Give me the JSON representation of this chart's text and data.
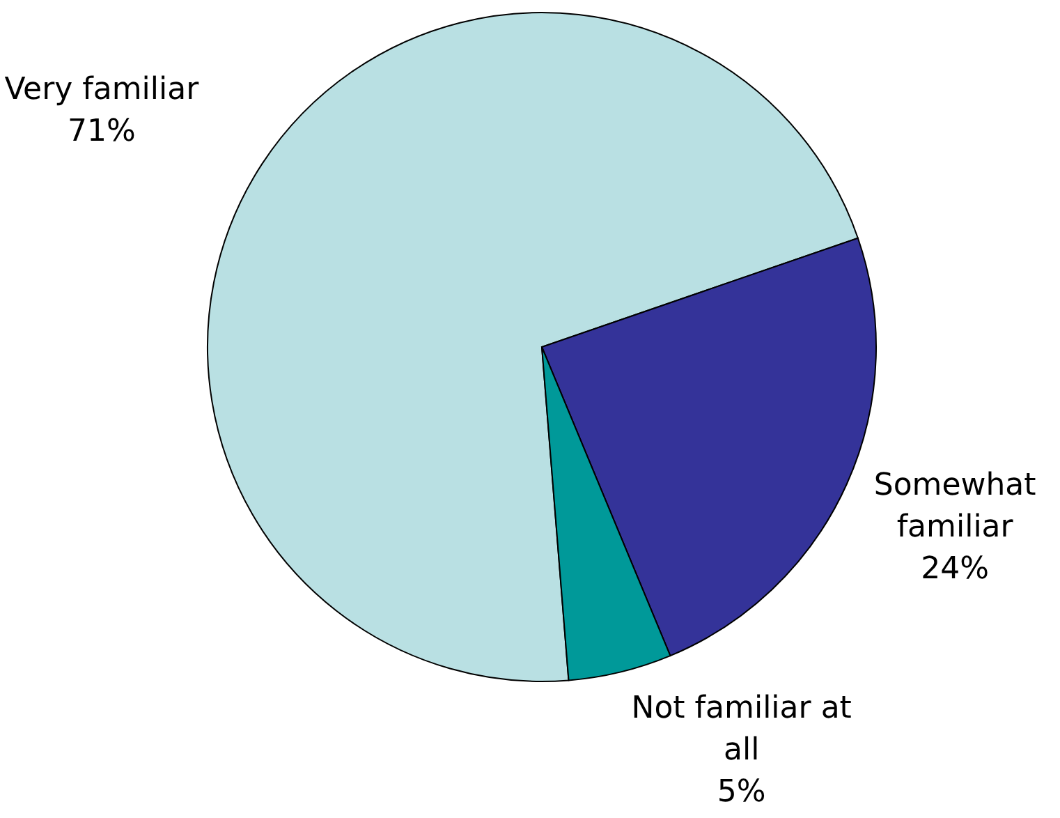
{
  "chart_data": {
    "type": "pie",
    "categories": [
      "Very familiar",
      "Somewhat familiar",
      "Not familiar at all"
    ],
    "values": [
      71,
      24,
      5
    ],
    "colors": [
      "#b9e0e3",
      "#343399",
      "#009999"
    ],
    "value_labels": [
      "71%",
      "24%",
      "5%"
    ]
  }
}
